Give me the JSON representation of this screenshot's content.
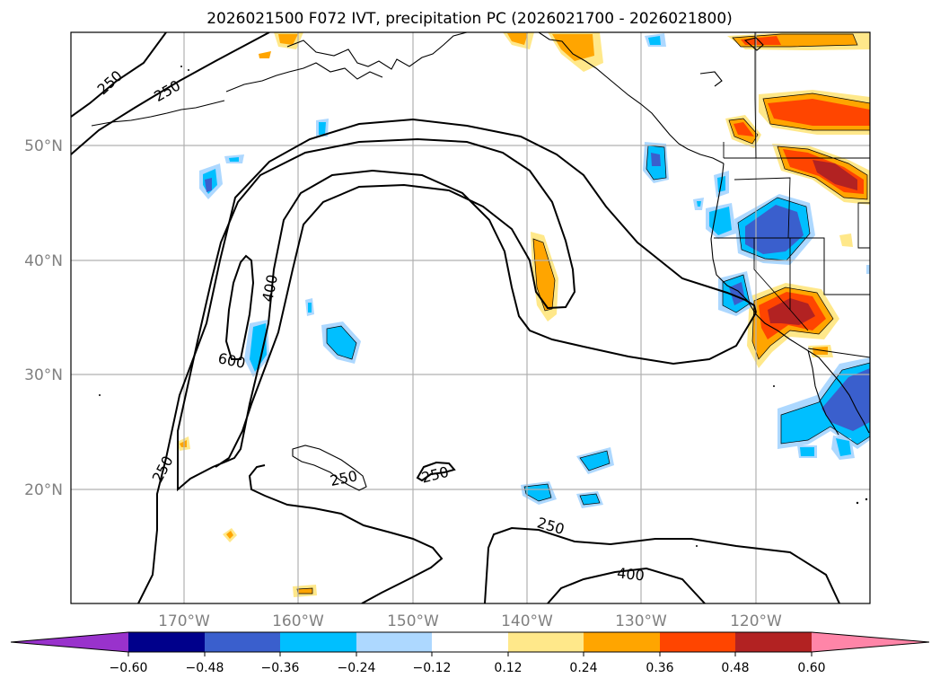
{
  "title": "2026021500 F072 IVT, precipitation PC (2026021700 - 2026021800)",
  "lat_labels": [
    "50°N",
    "40°N",
    "30°N",
    "20°N"
  ],
  "lon_labels": [
    "170°W",
    "160°W",
    "150°W",
    "140°W",
    "130°W",
    "120°W"
  ],
  "ivt_contour_labels": [
    "250",
    "250",
    "400",
    "600",
    "250",
    "250",
    "250",
    "250",
    "400"
  ],
  "colorbar": {
    "tick_labels": [
      "−0.60",
      "−0.48",
      "−0.36",
      "−0.24",
      "−0.12",
      "0.12",
      "0.24",
      "0.36",
      "0.48",
      "0.60"
    ],
    "colors": [
      "#9932cc",
      "#00008b",
      "#3a5fcd",
      "#00bfff",
      "#add8ff",
      "#ffffff",
      "#ffe88a",
      "#ffa500",
      "#ff4500",
      "#b22222",
      "#ff85a8"
    ]
  },
  "precip_pc_levels": [
    -0.6,
    -0.48,
    -0.36,
    -0.24,
    -0.12,
    0.12,
    0.24,
    0.36,
    0.48,
    0.6
  ],
  "ivt_contour_levels": [
    250,
    400,
    600
  ]
}
